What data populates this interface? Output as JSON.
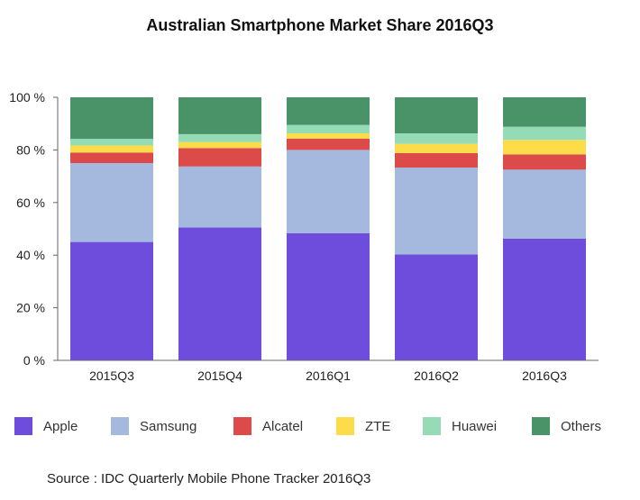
{
  "title": "Australian Smartphone Market Share 2016Q3",
  "source": "Source : IDC Quarterly Mobile Phone Tracker 2016Q3",
  "chart_data": {
    "type": "bar",
    "stacked": true,
    "title": "Australian Smartphone Market Share 2016Q3",
    "xlabel": "",
    "ylabel": "",
    "ylim": [
      0,
      100
    ],
    "yticks": [
      "0 %",
      "20 %",
      "40 %",
      "60 %",
      "80 %",
      "100 %"
    ],
    "categories": [
      "2015Q3",
      "2015Q4",
      "2016Q1",
      "2016Q2",
      "2016Q3"
    ],
    "series": [
      {
        "name": "Apple",
        "color": "#6f4ddc",
        "values": [
          45,
          50.5,
          48.3,
          40.3,
          46.3
        ]
      },
      {
        "name": "Samsung",
        "color": "#a5b8de",
        "values": [
          30,
          23.2,
          31.7,
          33,
          26.2
        ]
      },
      {
        "name": "Alcatel",
        "color": "#dd4a4a",
        "values": [
          4,
          7,
          4.3,
          5.5,
          5.8
        ]
      },
      {
        "name": "ZTE",
        "color": "#fddc4a",
        "values": [
          2.7,
          2.3,
          2,
          3.5,
          5.5
        ]
      },
      {
        "name": "Huawei",
        "color": "#94dbb6",
        "values": [
          2.5,
          3,
          3.2,
          4,
          5
        ]
      },
      {
        "name": "Others",
        "color": "#4a9268",
        "values": [
          15.8,
          14,
          10.5,
          13.7,
          11.2
        ]
      }
    ],
    "legend_position": "bottom"
  }
}
